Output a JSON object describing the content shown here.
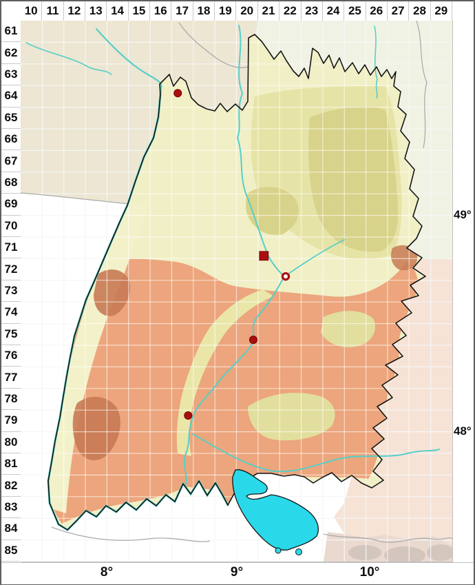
{
  "grid": {
    "column_labels": [
      "10",
      "11",
      "12",
      "13",
      "14",
      "15",
      "16",
      "17",
      "18",
      "19",
      "20",
      "21",
      "22",
      "23",
      "24",
      "25",
      "26",
      "27",
      "28",
      "29"
    ],
    "row_labels": [
      "61",
      "62",
      "63",
      "64",
      "65",
      "66",
      "67",
      "68",
      "69",
      "70",
      "71",
      "72",
      "73",
      "74",
      "75",
      "76",
      "77",
      "78",
      "79",
      "80",
      "81",
      "82",
      "83",
      "84",
      "85"
    ],
    "latitude_labels": [
      "49°",
      "48°"
    ],
    "longitude_labels": [
      "8°",
      "9°",
      "10°"
    ]
  },
  "markers": [
    {
      "shape": "filled-circle",
      "col": 17.28,
      "row": 64.35
    },
    {
      "shape": "filled-square",
      "col": 21.27,
      "row": 71.87
    },
    {
      "shape": "open-circle",
      "col": 22.28,
      "row": 72.82
    },
    {
      "shape": "filled-circle",
      "col": 20.78,
      "row": 75.75
    },
    {
      "shape": "filled-circle",
      "col": 17.76,
      "row": 79.25
    }
  ],
  "colors": {
    "marker_dark_red": "#a90f0f",
    "marker_edge": "#6e0000",
    "lake_cyan": "#29d9e9",
    "river_cyan": "#56cfc8",
    "lowland_yellow": "#f1efc6",
    "midland_khaki_light": "#e6e3a6",
    "midland_khaki": "#d8d38a",
    "upland_salmon": "#eca57c",
    "high_relief_brown": "#c87a53",
    "rhine_plain_yellow": "#f3f1c9",
    "valley_strip": "#e9e6a8",
    "outside_northwest_cream": "#ece6d2",
    "outside_northeast_pale": "#f0f3e3",
    "outside_southeast_pink": "#f6e3d6",
    "alps_strip": "#ead9cf",
    "alps_relief_gray": "#d0c3bb",
    "state_border_black": "#141414",
    "admin_border_gray": "#ababab",
    "grid_line_gray": "#e6e6e6",
    "grid_line_white": "rgba(255,255,255,0.62)"
  }
}
